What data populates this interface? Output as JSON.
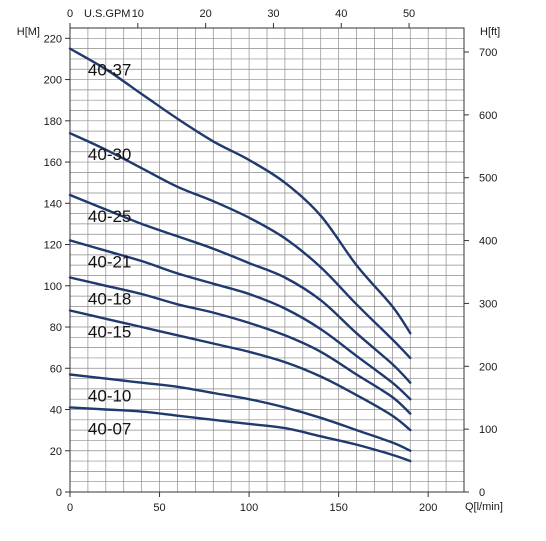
{
  "chart_data": {
    "type": "line",
    "colors": {
      "curve": "#1f3a6e",
      "grid": "#8c8c8c",
      "axis": "#333333"
    },
    "axes": {
      "x_bottom": {
        "label": "Q[l/min]",
        "range": [
          0,
          220
        ],
        "ticks": [
          0,
          50,
          100,
          150,
          200
        ]
      },
      "x_top": {
        "label": "U.S.GPM",
        "range": [
          0,
          58.1
        ],
        "ticks": [
          0,
          10,
          20,
          30,
          40,
          50
        ]
      },
      "y_left": {
        "label": "H[M]",
        "range": [
          0,
          225
        ],
        "ticks": [
          0,
          20,
          40,
          60,
          80,
          100,
          120,
          140,
          160,
          180,
          200,
          220
        ]
      },
      "y_right": {
        "label": "H[ft]",
        "range": [
          0,
          738.2
        ],
        "ticks": [
          0,
          100,
          200,
          300,
          400,
          500,
          600,
          700
        ]
      }
    },
    "grid": true,
    "series": [
      {
        "name": "40-37",
        "x": [
          0,
          20,
          40,
          60,
          80,
          100,
          120,
          140,
          160,
          180,
          190
        ],
        "y": [
          215,
          205,
          193,
          181,
          170,
          161,
          150,
          134,
          110,
          90,
          77
        ]
      },
      {
        "name": "40-30",
        "x": [
          0,
          20,
          40,
          60,
          80,
          100,
          120,
          140,
          160,
          180,
          190
        ],
        "y": [
          174,
          166,
          157,
          148,
          141,
          133,
          123,
          109,
          91,
          74,
          65
        ]
      },
      {
        "name": "40-25",
        "x": [
          0,
          20,
          40,
          60,
          80,
          100,
          120,
          140,
          160,
          180,
          190
        ],
        "y": [
          144,
          137,
          130,
          124,
          118,
          111,
          104,
          93,
          77,
          62,
          53
        ]
      },
      {
        "name": "40-21",
        "x": [
          0,
          20,
          40,
          60,
          80,
          100,
          120,
          140,
          160,
          180,
          190
        ],
        "y": [
          122,
          117,
          112,
          106,
          101,
          96,
          89,
          79,
          66,
          53,
          45
        ]
      },
      {
        "name": "40-18",
        "x": [
          0,
          20,
          40,
          60,
          80,
          100,
          120,
          140,
          160,
          180,
          190
        ],
        "y": [
          104,
          100,
          96,
          91,
          87,
          82,
          76,
          68,
          57,
          46,
          38
        ]
      },
      {
        "name": "40-15",
        "x": [
          0,
          20,
          40,
          60,
          80,
          100,
          120,
          140,
          160,
          180,
          190
        ],
        "y": [
          88,
          84,
          80,
          76,
          72,
          68,
          63,
          56,
          47,
          37,
          30
        ]
      },
      {
        "name": "40-10",
        "x": [
          0,
          20,
          40,
          60,
          80,
          100,
          120,
          140,
          160,
          180,
          190
        ],
        "y": [
          57,
          55,
          53,
          51,
          48,
          45,
          41,
          36,
          30,
          24,
          20
        ]
      },
      {
        "name": "40-07",
        "x": [
          0,
          20,
          40,
          60,
          80,
          100,
          120,
          140,
          160,
          180,
          190
        ],
        "y": [
          41,
          40,
          39,
          37,
          35,
          33,
          31,
          27,
          23,
          18,
          15
        ]
      }
    ]
  }
}
